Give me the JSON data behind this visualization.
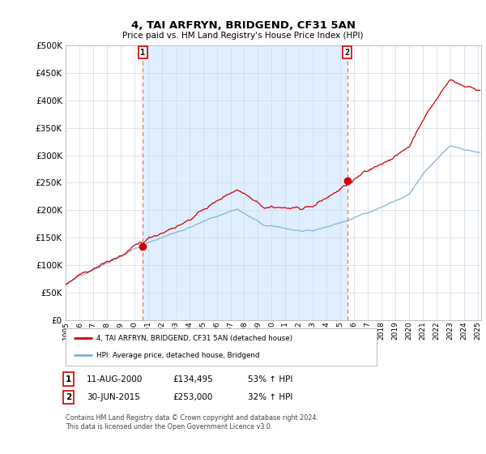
{
  "title": "4, TAI ARFRYN, BRIDGEND, CF31 5AN",
  "subtitle": "Price paid vs. HM Land Registry's House Price Index (HPI)",
  "ylim": [
    0,
    500000
  ],
  "yticks": [
    0,
    50000,
    100000,
    150000,
    200000,
    250000,
    300000,
    350000,
    400000,
    450000,
    500000
  ],
  "legend_entry1": "4, TAI ARFRYN, BRIDGEND, CF31 5AN (detached house)",
  "legend_entry2": "HPI: Average price, detached house, Bridgend",
  "annotation1": {
    "label": "1",
    "date": "11-AUG-2000",
    "price": "£134,495",
    "change": "53% ↑ HPI"
  },
  "annotation2": {
    "label": "2",
    "date": "30-JUN-2015",
    "price": "£253,000",
    "change": "32% ↑ HPI"
  },
  "footnote": "Contains HM Land Registry data © Crown copyright and database right 2024.\nThis data is licensed under the Open Government Licence v3.0.",
  "line_color_property": "#cc0000",
  "line_color_hpi": "#7ab0d4",
  "marker_color": "#cc0000",
  "vline_color": "#e87070",
  "background_color": "#ffffff",
  "grid_color": "#d0d8e4",
  "shade_color": "#ddeeff",
  "sale1_year": 2000.62,
  "sale1_price": 134495,
  "sale2_year": 2015.5,
  "sale2_price": 253000,
  "xlim_start": 1995.0,
  "xlim_end": 2025.25
}
